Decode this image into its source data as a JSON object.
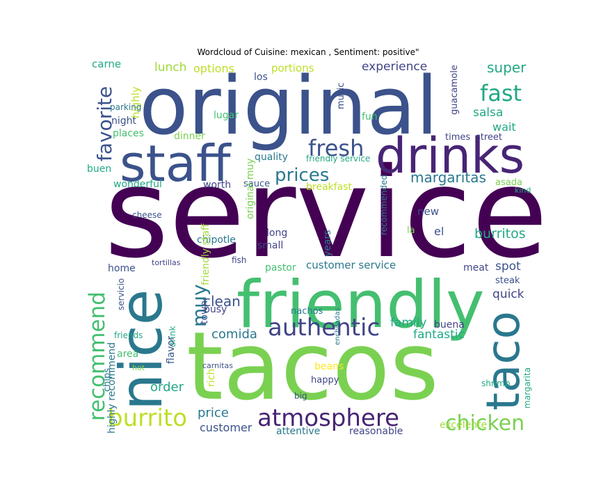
{
  "chart_data": {
    "type": "wordcloud",
    "title": "Wordcloud of Cuisine: mexican , Sentiment: positive\"",
    "words": [
      {
        "text": "service",
        "weight": 100,
        "color": "#440154",
        "orientation": "horizontal"
      },
      {
        "text": "original",
        "weight": 60,
        "color": "#3b528b",
        "orientation": "horizontal"
      },
      {
        "text": "tacos",
        "weight": 65,
        "color": "#7ad151",
        "orientation": "horizontal"
      },
      {
        "text": "friendly",
        "weight": 50,
        "color": "#44bf70",
        "orientation": "horizontal"
      },
      {
        "text": "nice",
        "weight": 42,
        "color": "#2a788e",
        "orientation": "vertical"
      },
      {
        "text": "staff",
        "weight": 38,
        "color": "#3b528b",
        "orientation": "horizontal"
      },
      {
        "text": "drinks",
        "weight": 38,
        "color": "#482475",
        "orientation": "horizontal"
      },
      {
        "text": "taco",
        "weight": 34,
        "color": "#2a788e",
        "orientation": "vertical"
      },
      {
        "text": "authentic",
        "weight": 22,
        "color": "#414487",
        "orientation": "horizontal"
      },
      {
        "text": "atmosphere",
        "weight": 22,
        "color": "#482475",
        "orientation": "horizontal"
      },
      {
        "text": "fresh",
        "weight": 20,
        "color": "#3b528b",
        "orientation": "horizontal"
      },
      {
        "text": "burrito",
        "weight": 22,
        "color": "#bddf26",
        "orientation": "horizontal"
      },
      {
        "text": "recommend",
        "weight": 20,
        "color": "#44bf70",
        "orientation": "vertical"
      },
      {
        "text": "chicken",
        "weight": 20,
        "color": "#7ad151",
        "orientation": "horizontal"
      },
      {
        "text": "prices",
        "weight": 18,
        "color": "#2a788e",
        "orientation": "horizontal"
      },
      {
        "text": "fast",
        "weight": 18,
        "color": "#22a884",
        "orientation": "horizontal"
      },
      {
        "text": "favorite",
        "weight": 17,
        "color": "#3b528b",
        "orientation": "vertical"
      },
      {
        "text": "muy",
        "weight": 17,
        "color": "#2a788e",
        "orientation": "vertical"
      },
      {
        "text": "margaritas",
        "weight": 12,
        "color": "#2a788e",
        "orientation": "horizontal"
      },
      {
        "text": "burritos",
        "weight": 12,
        "color": "#22a884",
        "orientation": "horizontal"
      },
      {
        "text": "super",
        "weight": 12,
        "color": "#22a884",
        "orientation": "horizontal"
      },
      {
        "text": "experience",
        "weight": 11,
        "color": "#414487",
        "orientation": "horizontal"
      },
      {
        "text": "salsa",
        "weight": 11,
        "color": "#22a884",
        "orientation": "horizontal"
      },
      {
        "text": "wait",
        "weight": 10,
        "color": "#22a884",
        "orientation": "horizontal"
      },
      {
        "text": "clean",
        "weight": 12,
        "color": "#3b528b",
        "orientation": "horizontal"
      },
      {
        "text": "comida",
        "weight": 11,
        "color": "#2a788e",
        "orientation": "horizontal"
      },
      {
        "text": "family",
        "weight": 11,
        "color": "#22a884",
        "orientation": "horizontal"
      },
      {
        "text": "fantastic",
        "weight": 11,
        "color": "#22a884",
        "orientation": "horizontal"
      },
      {
        "text": "quick",
        "weight": 11,
        "color": "#414487",
        "orientation": "horizontal"
      },
      {
        "text": "spot",
        "weight": 11,
        "color": "#3b528b",
        "orientation": "horizontal"
      },
      {
        "text": "order",
        "weight": 11,
        "color": "#22a884",
        "orientation": "horizontal"
      },
      {
        "text": "price",
        "weight": 11,
        "color": "#2a788e",
        "orientation": "horizontal"
      },
      {
        "text": "customer",
        "weight": 11,
        "color": "#3b528b",
        "orientation": "horizontal"
      },
      {
        "text": "customer service",
        "weight": 10,
        "color": "#2a788e",
        "orientation": "horizontal"
      },
      {
        "text": "lunch",
        "weight": 11,
        "color": "#a0da39",
        "orientation": "horizontal"
      },
      {
        "text": "options",
        "weight": 10,
        "color": "#bddf26",
        "orientation": "horizontal"
      },
      {
        "text": "portions",
        "weight": 10,
        "color": "#bddf26",
        "orientation": "horizontal"
      },
      {
        "text": "carne",
        "weight": 10,
        "color": "#22a884",
        "orientation": "horizontal"
      },
      {
        "text": "highly",
        "weight": 10,
        "color": "#bddf26",
        "orientation": "vertical"
      },
      {
        "text": "parking",
        "weight": 8,
        "color": "#2a788e",
        "orientation": "horizontal"
      },
      {
        "text": "night",
        "weight": 10,
        "color": "#3b528b",
        "orientation": "horizontal"
      },
      {
        "text": "places",
        "weight": 9,
        "color": "#44bf70",
        "orientation": "horizontal"
      },
      {
        "text": "lugar",
        "weight": 9,
        "color": "#44bf70",
        "orientation": "horizontal"
      },
      {
        "text": "dinner",
        "weight": 9,
        "color": "#7ad151",
        "orientation": "horizontal"
      },
      {
        "text": "los",
        "weight": 9,
        "color": "#3b528b",
        "orientation": "horizontal"
      },
      {
        "text": "music",
        "weight": 9,
        "color": "#3b528b",
        "orientation": "vertical"
      },
      {
        "text": "fun",
        "weight": 9,
        "color": "#44bf70",
        "orientation": "horizontal"
      },
      {
        "text": "guacamole",
        "weight": 9,
        "color": "#414487",
        "orientation": "vertical"
      },
      {
        "text": "times",
        "weight": 9,
        "color": "#414487",
        "orientation": "horizontal"
      },
      {
        "text": "street",
        "weight": 9,
        "color": "#414487",
        "orientation": "horizontal"
      },
      {
        "text": "quality",
        "weight": 9,
        "color": "#2a788e",
        "orientation": "horizontal"
      },
      {
        "text": "friendly service",
        "weight": 8,
        "color": "#22a884",
        "orientation": "horizontal"
      },
      {
        "text": "buen",
        "weight": 9,
        "color": "#22a884",
        "orientation": "horizontal"
      },
      {
        "text": "wonderful",
        "weight": 10,
        "color": "#22a884",
        "orientation": "horizontal"
      },
      {
        "text": "worth",
        "weight": 10,
        "color": "#414487",
        "orientation": "horizontal"
      },
      {
        "text": "sauce",
        "weight": 9,
        "color": "#3b528b",
        "orientation": "horizontal"
      },
      {
        "text": "breakfast",
        "weight": 10,
        "color": "#bddf26",
        "orientation": "horizontal"
      },
      {
        "text": "recommended",
        "weight": 8,
        "color": "#2a788e",
        "orientation": "vertical"
      },
      {
        "text": "asada",
        "weight": 9,
        "color": "#7ad151",
        "orientation": "horizontal"
      },
      {
        "text": "kind",
        "weight": 8,
        "color": "#22a884",
        "orientation": "horizontal"
      },
      {
        "text": "cheese",
        "weight": 8,
        "color": "#3b528b",
        "orientation": "horizontal"
      },
      {
        "text": "original muy",
        "weight": 9,
        "color": "#7ad151",
        "orientation": "vertical"
      },
      {
        "text": "new",
        "weight": 9,
        "color": "#3b528b",
        "orientation": "horizontal"
      },
      {
        "text": "el",
        "weight": 10,
        "color": "#3b528b",
        "orientation": "horizontal"
      },
      {
        "text": "la",
        "weight": 10,
        "color": "#7ad151",
        "orientation": "horizontal"
      },
      {
        "text": "long",
        "weight": 9,
        "color": "#414487",
        "orientation": "horizontal"
      },
      {
        "text": "small",
        "weight": 9,
        "color": "#414487",
        "orientation": "horizontal"
      },
      {
        "text": "chipotle",
        "weight": 9,
        "color": "#2a788e",
        "orientation": "horizontal"
      },
      {
        "text": "fish",
        "weight": 9,
        "color": "#414487",
        "orientation": "horizontal"
      },
      {
        "text": "years",
        "weight": 8,
        "color": "#2a788e",
        "orientation": "vertical"
      },
      {
        "text": "home",
        "weight": 9,
        "color": "#3b528b",
        "orientation": "horizontal"
      },
      {
        "text": "tortillas",
        "weight": 9,
        "color": "#414487",
        "orientation": "horizontal"
      },
      {
        "text": "pastor",
        "weight": 8,
        "color": "#44bf70",
        "orientation": "horizontal"
      },
      {
        "text": "meat",
        "weight": 9,
        "color": "#414487",
        "orientation": "horizontal"
      },
      {
        "text": "steak",
        "weight": 9,
        "color": "#3b528b",
        "orientation": "horizontal"
      },
      {
        "text": "friends",
        "weight": 9,
        "color": "#22a884",
        "orientation": "horizontal"
      },
      {
        "text": "servicio",
        "weight": 8,
        "color": "#3b528b",
        "orientation": "vertical"
      },
      {
        "text": "drink",
        "weight": 8,
        "color": "#22a884",
        "orientation": "vertical"
      },
      {
        "text": "friendly staff",
        "weight": 8,
        "color": "#a0da39",
        "orientation": "vertical"
      },
      {
        "text": "busy",
        "weight": 9,
        "color": "#414487",
        "orientation": "horizontal"
      },
      {
        "text": "nachos",
        "weight": 9,
        "color": "#2a788e",
        "orientation": "horizontal"
      },
      {
        "text": "town",
        "weight": 9,
        "color": "#3b528b",
        "orientation": "vertical"
      },
      {
        "text": "buena",
        "weight": 9,
        "color": "#414487",
        "orientation": "horizontal"
      },
      {
        "text": "area",
        "weight": 10,
        "color": "#44bf70",
        "orientation": "horizontal"
      },
      {
        "text": "chips",
        "weight": 9,
        "color": "#2a788e",
        "orientation": "vertical"
      },
      {
        "text": "flavor",
        "weight": 9,
        "color": "#3b528b",
        "orientation": "vertical"
      },
      {
        "text": "hot",
        "weight": 9,
        "color": "#7ad151",
        "orientation": "horizontal"
      },
      {
        "text": "carnitas",
        "weight": 8,
        "color": "#3b528b",
        "orientation": "horizontal"
      },
      {
        "text": "rich",
        "weight": 8,
        "color": "#bddf26",
        "orientation": "vertical"
      },
      {
        "text": "big",
        "weight": 9,
        "color": "#3b528b",
        "orientation": "horizontal"
      },
      {
        "text": "enchiladas",
        "weight": 8,
        "color": "#2a788e",
        "orientation": "vertical"
      },
      {
        "text": "beans",
        "weight": 7,
        "color": "#fde725",
        "orientation": "horizontal"
      },
      {
        "text": "happy",
        "weight": 9,
        "color": "#414487",
        "orientation": "horizontal"
      },
      {
        "text": "shrimp",
        "weight": 9,
        "color": "#22a884",
        "orientation": "horizontal"
      },
      {
        "text": "margarita",
        "weight": 8,
        "color": "#22a884",
        "orientation": "vertical"
      },
      {
        "text": "highly recommend",
        "weight": 8,
        "color": "#2a788e",
        "orientation": "vertical"
      },
      {
        "text": "attentive",
        "weight": 9,
        "color": "#2a788e",
        "orientation": "horizontal"
      },
      {
        "text": "reasonable",
        "weight": 9,
        "color": "#414487",
        "orientation": "horizontal"
      },
      {
        "text": "excelente",
        "weight": 9,
        "color": "#a0da39",
        "orientation": "horizontal"
      },
      {
        "text": "day",
        "weight": 8,
        "color": "#414487",
        "orientation": "vertical"
      }
    ]
  }
}
